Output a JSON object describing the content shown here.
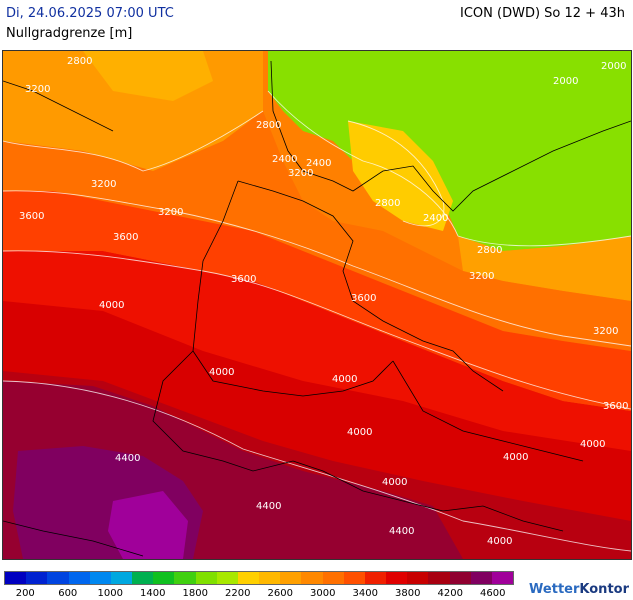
{
  "header": {
    "date": "Di, 24.06.2025 07:00 UTC",
    "model": "ICON (DWD) So 12 + 43h",
    "parameter": "Nullgradgrenze [m]"
  },
  "map": {
    "contour_labels": [
      "2800",
      "3200",
      "2400",
      "3600",
      "4000",
      "4400",
      "2000"
    ],
    "labels": [
      {
        "text": "2800"
      },
      {
        "text": "3200"
      },
      {
        "text": "3200"
      },
      {
        "text": "3600"
      },
      {
        "text": "3200"
      },
      {
        "text": "3600"
      },
      {
        "text": "4000"
      },
      {
        "text": "3600"
      },
      {
        "text": "3600"
      },
      {
        "text": "4000"
      },
      {
        "text": "4000"
      },
      {
        "text": "4000"
      },
      {
        "text": "4400"
      },
      {
        "text": "4400"
      },
      {
        "text": "4400"
      },
      {
        "text": "4000"
      },
      {
        "text": "4000"
      },
      {
        "text": "4000"
      },
      {
        "text": "4000"
      },
      {
        "text": "3600"
      },
      {
        "text": "3200"
      },
      {
        "text": "3200"
      },
      {
        "text": "2800"
      },
      {
        "text": "2400"
      },
      {
        "text": "2400"
      },
      {
        "text": "2000"
      },
      {
        "text": "2000"
      },
      {
        "text": "2800"
      },
      {
        "text": "2400"
      },
      {
        "text": "2800"
      },
      {
        "text": "3200"
      }
    ]
  },
  "legend": {
    "colors": [
      "#0000c0",
      "#0022d0",
      "#0044e0",
      "#0066ee",
      "#0088f0",
      "#00a8e0",
      "#00b050",
      "#10c020",
      "#40d010",
      "#80e000",
      "#a8e800",
      "#ffd000",
      "#ffb800",
      "#ffa000",
      "#ff8800",
      "#ff7000",
      "#ff5000",
      "#f02000",
      "#e00000",
      "#c80000",
      "#a80010",
      "#900030",
      "#800060",
      "#a0009a"
    ],
    "ticks": [
      "200",
      "600",
      "1000",
      "1400",
      "1800",
      "2200",
      "2600",
      "3000",
      "3400",
      "3800",
      "4200",
      "4600"
    ]
  },
  "brand": {
    "name_a": "Wetter",
    "name_b": "Kontor"
  }
}
